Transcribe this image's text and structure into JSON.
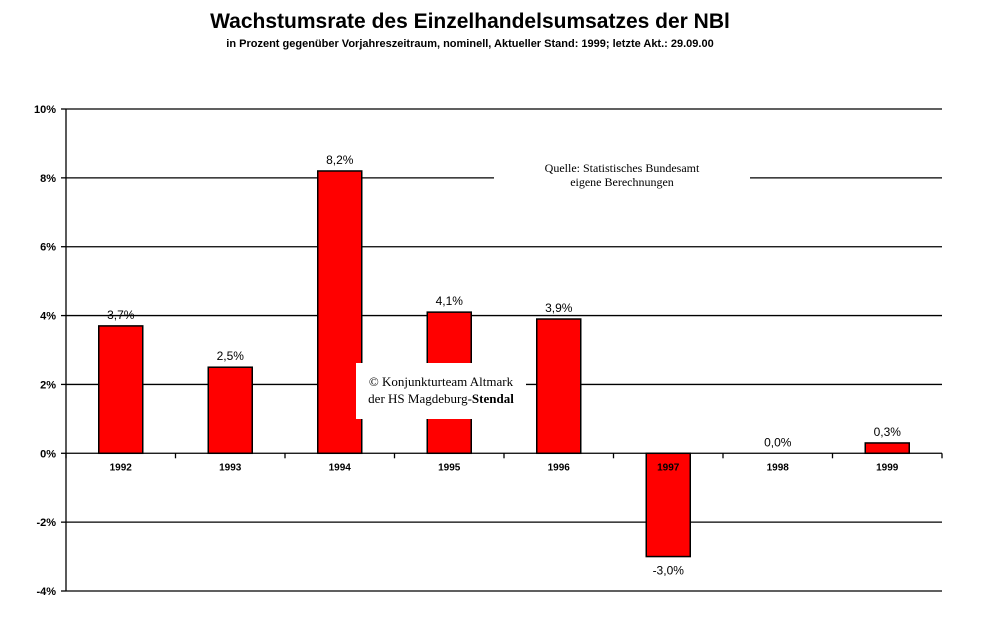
{
  "chart_data": {
    "type": "bar",
    "title": "Wachstumsrate des Einzelhandelsumsatzes der NBl",
    "subtitle": "in Prozent gegenüber Vorjahreszeitraum, nominell, Aktueller Stand: 1999; letzte Akt.: 29.09.00",
    "categories": [
      "1992",
      "1993",
      "1994",
      "1995",
      "1996",
      "1997",
      "1998",
      "1999"
    ],
    "values": [
      3.7,
      2.5,
      8.2,
      4.1,
      3.9,
      -3.0,
      0.0,
      0.3
    ],
    "data_labels": [
      "3,7%",
      "2,5%",
      "8,2%",
      "4,1%",
      "3,9%",
      "-3,0%",
      "0,0%",
      "0,3%"
    ],
    "ylim": [
      -4,
      10
    ],
    "y_ticks": [
      -4,
      -2,
      0,
      2,
      4,
      6,
      8,
      10
    ],
    "y_tick_labels": [
      "-4%",
      "-2%",
      "0%",
      "2%",
      "4%",
      "6%",
      "8%",
      "10%"
    ],
    "xlabel": "",
    "ylabel": "",
    "grid": true,
    "legend": "none",
    "bar_color": "#ff0000"
  },
  "notes": {
    "source_line1": "Quelle: Statistisches Bundesamt",
    "source_line2": "eigene Berechnungen",
    "copyright_line1": "© Konjunkturteam Altmark",
    "copyright_line2_prefix": "der HS Magdeburg-",
    "copyright_line2_bold": "Stendal"
  }
}
